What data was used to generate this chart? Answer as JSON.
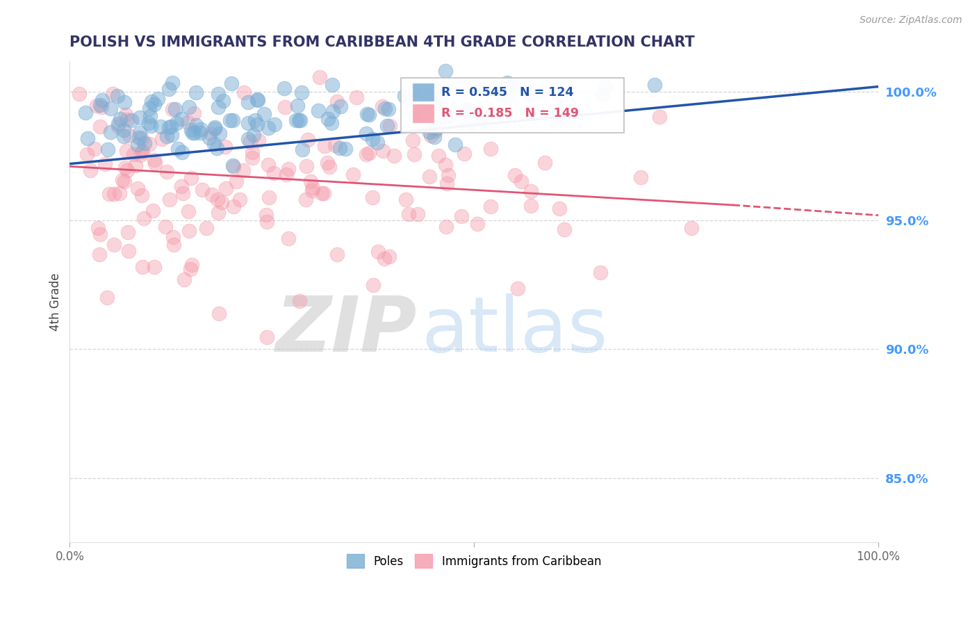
{
  "title": "POLISH VS IMMIGRANTS FROM CARIBBEAN 4TH GRADE CORRELATION CHART",
  "source_text": "Source: ZipAtlas.com",
  "ylabel": "4th Grade",
  "xlim": [
    0.0,
    1.0
  ],
  "ylim": [
    0.825,
    1.012
  ],
  "yticks": [
    0.85,
    0.9,
    0.95,
    1.0
  ],
  "ytick_labels": [
    "85.0%",
    "90.0%",
    "95.0%",
    "100.0%"
  ],
  "blue_R": 0.545,
  "blue_N": 124,
  "pink_R": -0.185,
  "pink_N": 149,
  "blue_color": "#7aadd4",
  "pink_color": "#f59aaa",
  "blue_line_color": "#2255aa",
  "pink_line_color": "#e05575",
  "legend_blue_label": "Poles",
  "legend_pink_label": "Immigrants from Caribbean",
  "watermark_zip": "ZIP",
  "watermark_atlas": "atlas",
  "background_color": "#ffffff",
  "grid_color": "#cccccc",
  "title_color": "#333366",
  "axis_label_color": "#444444",
  "right_axis_color": "#4499ff",
  "blue_trend_start_x": 0.0,
  "blue_trend_start_y": 0.972,
  "blue_trend_end_x": 1.0,
  "blue_trend_end_y": 1.002,
  "pink_trend_start_x": 0.0,
  "pink_trend_start_y": 0.971,
  "pink_trend_end_x": 0.82,
  "pink_trend_end_y": 0.956,
  "pink_trend_dash_start_x": 0.82,
  "pink_trend_dash_start_y": 0.956,
  "pink_trend_dash_end_x": 1.0,
  "pink_trend_dash_end_y": 0.952
}
